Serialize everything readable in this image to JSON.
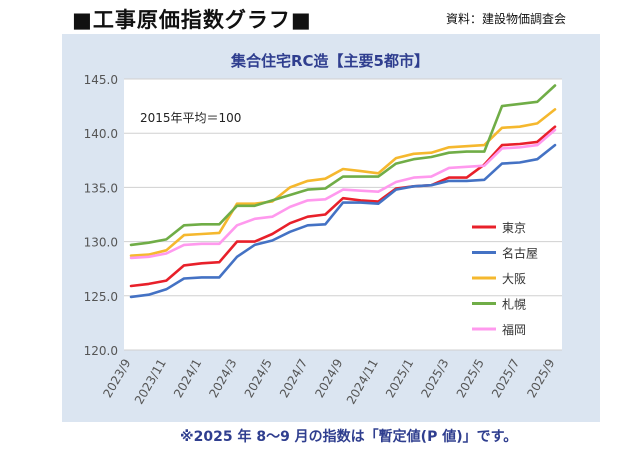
{
  "page": {
    "title": "■工事原価指数グラフ■",
    "source": "資料：建設物価調査会",
    "footnote": "※2025 年 8～9 月の指数は「暫定値(P 値)」です。"
  },
  "chart_data": {
    "type": "line",
    "title": "集合住宅RC造【主要5都市】",
    "annotation": "2015年平均＝100",
    "xlabel": "",
    "ylabel": "",
    "ylim": [
      120.0,
      145.0
    ],
    "yticks": [
      120.0,
      125.0,
      130.0,
      135.0,
      140.0,
      145.0
    ],
    "ytick_labels": [
      "120.0",
      "125.0",
      "130.0",
      "135.0",
      "140.0",
      "145.0"
    ],
    "grid": true,
    "legend_position": "right-inside",
    "x": [
      "2023/9",
      "2023/10",
      "2023/11",
      "2023/12",
      "2024/1",
      "2024/2",
      "2024/3",
      "2024/4",
      "2024/5",
      "2024/6",
      "2024/7",
      "2024/8",
      "2024/9",
      "2024/10",
      "2024/11",
      "2024/12",
      "2025/1",
      "2025/2",
      "2025/3",
      "2025/4",
      "2025/5",
      "2025/6",
      "2025/7",
      "2025/8",
      "2025/9"
    ],
    "xtick_labels": [
      "2023/9",
      "2023/11",
      "2024/1",
      "2024/3",
      "2024/5",
      "2024/7",
      "2024/9",
      "2024/11",
      "2025/1",
      "2025/3",
      "2025/5",
      "2025/7",
      "2025/9"
    ],
    "series": [
      {
        "name": "東京",
        "color": "#e8202a",
        "values": [
          125.9,
          126.1,
          126.4,
          127.8,
          128.0,
          128.1,
          130.0,
          130.0,
          130.7,
          131.7,
          132.3,
          132.5,
          134.0,
          133.8,
          133.7,
          134.9,
          135.1,
          135.2,
          135.9,
          135.9,
          137.1,
          138.9,
          139.0,
          139.2,
          140.6
        ]
      },
      {
        "name": "名古屋",
        "color": "#4472c4",
        "values": [
          124.9,
          125.1,
          125.6,
          126.6,
          126.7,
          126.7,
          128.6,
          129.7,
          130.1,
          130.9,
          131.5,
          131.6,
          133.6,
          133.6,
          133.5,
          134.8,
          135.1,
          135.2,
          135.6,
          135.6,
          135.7,
          137.2,
          137.3,
          137.6,
          138.9
        ]
      },
      {
        "name": "大阪",
        "color": "#f5b82e",
        "values": [
          128.7,
          128.8,
          129.2,
          130.6,
          130.7,
          130.8,
          133.5,
          133.5,
          133.7,
          135.0,
          135.6,
          135.8,
          136.7,
          136.5,
          136.3,
          137.7,
          138.1,
          138.2,
          138.7,
          138.8,
          138.9,
          140.5,
          140.6,
          140.9,
          142.2
        ]
      },
      {
        "name": "札幌",
        "color": "#70ad47",
        "values": [
          129.7,
          129.9,
          130.2,
          131.5,
          131.6,
          131.6,
          133.3,
          133.3,
          133.8,
          134.3,
          134.8,
          134.9,
          136.0,
          136.0,
          136.0,
          137.2,
          137.6,
          137.8,
          138.2,
          138.3,
          138.3,
          142.5,
          142.7,
          142.9,
          144.4
        ]
      },
      {
        "name": "福岡",
        "color": "#ff99ee",
        "values": [
          128.5,
          128.6,
          128.9,
          129.7,
          129.8,
          129.8,
          131.5,
          132.1,
          132.3,
          133.2,
          133.8,
          133.9,
          134.8,
          134.7,
          134.6,
          135.5,
          135.9,
          136.0,
          136.8,
          136.9,
          137.0,
          138.6,
          138.7,
          138.9,
          140.3
        ]
      }
    ]
  }
}
